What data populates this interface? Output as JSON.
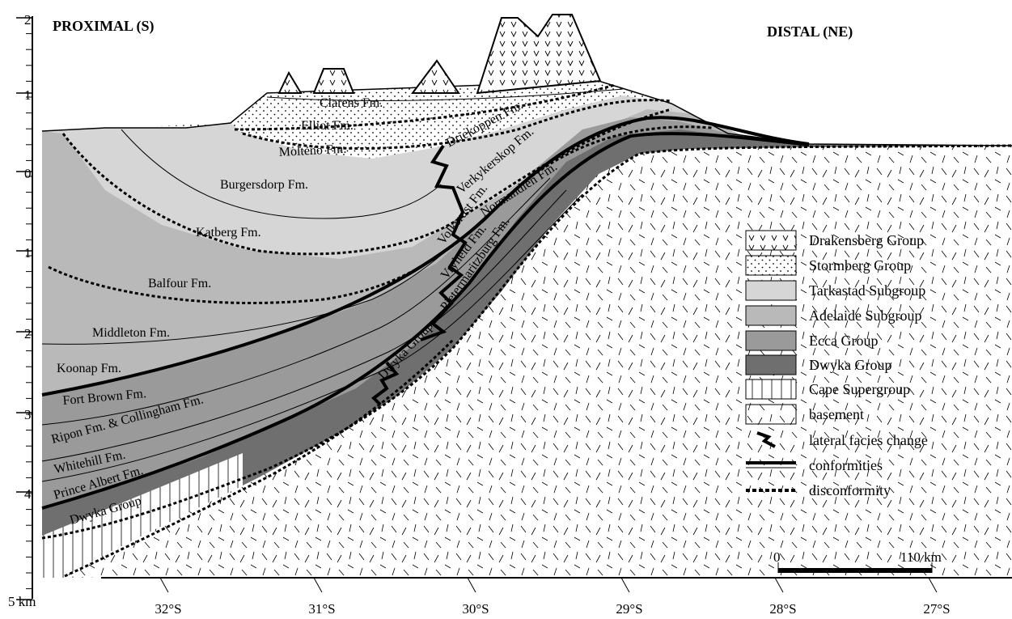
{
  "header": {
    "left": "PROXIMAL (S)",
    "right": "DISTAL (NE)"
  },
  "depth_axis": [
    "2",
    "1",
    "0",
    "1",
    "2",
    "3",
    "4",
    "5 km"
  ],
  "latitude_axis": [
    "32°S",
    "31°S",
    "30°S",
    "29°S",
    "28°S",
    "27°S"
  ],
  "formations": [
    "Clarens Fm.",
    "Elliot Fm.",
    "Molteno Fm.",
    "Driekoppen Fm.",
    "Verkykerskop Fm.",
    "Normandien Fm.",
    "Burgersdorp Fm.",
    "Katberg Fm.",
    "Balfour Fm.",
    "Middleton Fm.",
    "Koonap Fm.",
    "Fort Brown Fm.",
    "Ripon Fm.  &  Collingham Fm.",
    "Whitehill Fm.",
    "Prince Albert Fm.",
    "Dwyka Group",
    "Dwyka Group",
    "Volksrust Fm.",
    "Vryheid Fm.",
    "Pietermaritzburg Fm."
  ],
  "legend": [
    "Drakensberg Group",
    "Stormberg Group",
    "Tarkastad Subgroup",
    "Adelaide Subgroup",
    "Ecca Group",
    "Dwyka Group",
    "Cape Supergroup",
    "basement",
    "lateral facies change",
    "conformities",
    "disconformity"
  ],
  "scale_bar": {
    "start": "0",
    "end": "110 km"
  }
}
